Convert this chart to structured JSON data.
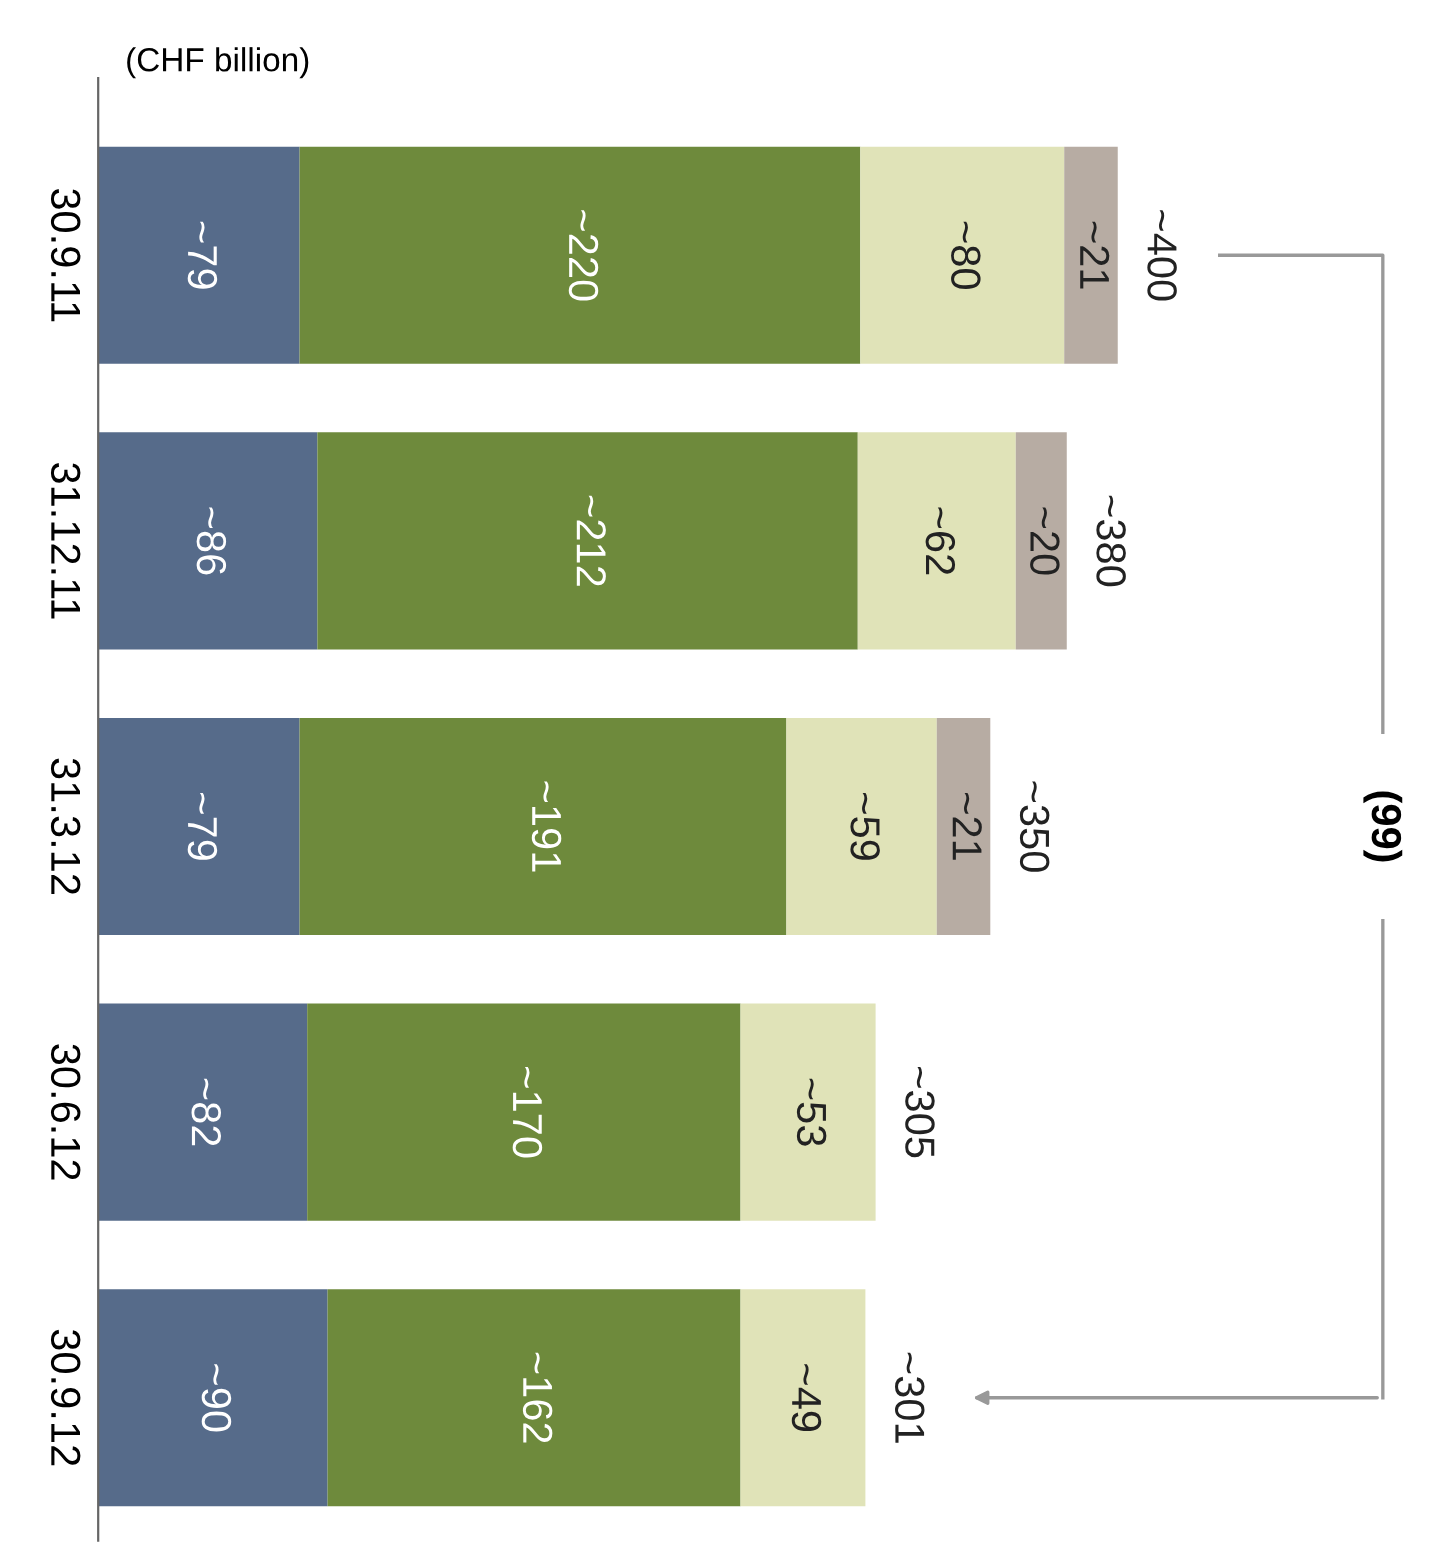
{
  "chart_data": {
    "type": "bar",
    "orientation": "horizontal",
    "stacked": true,
    "subtitle": "(CHF billion)",
    "categories": [
      "30.9.11",
      "31.12.11",
      "31.3.12",
      "30.6.12",
      "30.9.12"
    ],
    "series": [
      {
        "color": "#566b8a",
        "values": [
          79,
          86,
          79,
          82,
          90
        ],
        "value_labels": [
          "~79",
          "~86",
          "~79",
          "~82",
          "~90"
        ]
      },
      {
        "color": "#6e8a3c",
        "values": [
          220,
          212,
          191,
          170,
          162
        ],
        "value_labels": [
          "~220",
          "~212",
          "~191",
          "~170",
          "~162"
        ]
      },
      {
        "color": "#e0e3b8",
        "values": [
          80,
          62,
          59,
          53,
          49
        ],
        "value_labels": [
          "~80",
          "~62",
          "~59",
          "~53",
          "~49"
        ]
      },
      {
        "color": "#b7aca3",
        "values": [
          21,
          20,
          21,
          null,
          null
        ],
        "value_labels": [
          "~21",
          "~20",
          "~21",
          null,
          null
        ]
      }
    ],
    "totals": [
      "~400",
      "~380",
      "~350",
      "~305",
      "~301"
    ],
    "annotations": [
      "(99)"
    ],
    "grid": false
  }
}
